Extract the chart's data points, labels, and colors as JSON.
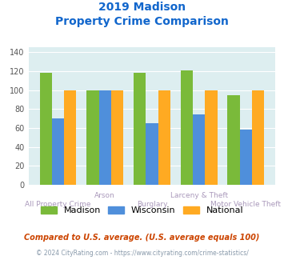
{
  "title_line1": "2019 Madison",
  "title_line2": "Property Crime Comparison",
  "categories": [
    "All Property Crime",
    "Arson",
    "Burglary",
    "Larceny & Theft",
    "Motor Vehicle Theft"
  ],
  "cat_labels_bottom": [
    "All Property Crime",
    "",
    "Burglary",
    "",
    "Motor Vehicle Theft"
  ],
  "cat_labels_top": [
    "",
    "Arson",
    "",
    "Larceny & Theft",
    ""
  ],
  "madison": [
    118,
    100,
    118,
    121,
    95
  ],
  "wisconsin": [
    70,
    100,
    65,
    74,
    58
  ],
  "national": [
    100,
    100,
    100,
    100,
    100
  ],
  "madison_color": "#7aba3a",
  "wisconsin_color": "#4f8fdb",
  "national_color": "#ffaa22",
  "bg_color": "#ddeef0",
  "ylim": [
    0,
    145
  ],
  "yticks": [
    0,
    20,
    40,
    60,
    80,
    100,
    120,
    140
  ],
  "xlabel_color": "#aa99bb",
  "title_color": "#1166cc",
  "legend_labels": [
    "Madison",
    "Wisconsin",
    "National"
  ],
  "footnote1": "Compared to U.S. average. (U.S. average equals 100)",
  "footnote2": "© 2024 CityRating.com - https://www.cityrating.com/crime-statistics/",
  "footnote1_color": "#cc4400",
  "footnote2_color": "#8899aa",
  "footnote2_link_color": "#4488cc"
}
